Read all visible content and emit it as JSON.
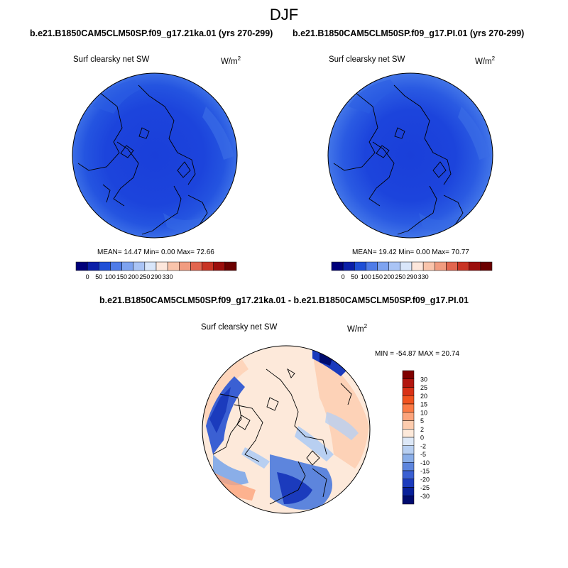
{
  "season": "DJF",
  "panels": [
    {
      "case": "b.e21.B1850CAM5CLM50SP.f09_g17.21ka.01 (yrs 270-299)",
      "variable": "Surf clearsky net SW",
      "units_base": "W/m",
      "units_exp": "2",
      "stats_line": "MEAN=  14.47  Min=   0.00  Max=  72.66",
      "stats": {
        "mean": 14.47,
        "min": 0.0,
        "max": 72.66
      }
    },
    {
      "case": "b.e21.B1850CAM5CLM50SP.f09_g17.PI.01 (yrs 270-299)",
      "variable": "Surf clearsky net SW",
      "units_base": "W/m",
      "units_exp": "2",
      "stats_line": "MEAN=  19.42  Min=   0.00  Max=  70.77",
      "stats": {
        "mean": 19.42,
        "min": 0.0,
        "max": 70.77
      }
    }
  ],
  "difference": {
    "title": "b.e21.B1850CAM5CLM50SP.f09_g17.21ka.01 - b.e21.B1850CAM5CLM50SP.f09_g17.PI.01",
    "variable": "Surf clearsky net SW",
    "units_base": "W/m",
    "units_exp": "2",
    "minmax_line": "MIN = -54.87 MAX =  20.74",
    "stats": {
      "min": -54.87,
      "max": 20.74
    }
  },
  "colorbar_horizontal": {
    "labels": [
      "0",
      "50",
      "100",
      "150",
      "200",
      "250",
      "290",
      "330"
    ],
    "colors": [
      "#00007a",
      "#0a1fa8",
      "#1f4fd6",
      "#4f7ce8",
      "#7ea3f0",
      "#aac4f5",
      "#d9e6fa",
      "#fde7dc",
      "#f9c4ab",
      "#f19c80",
      "#e2664f",
      "#c83424",
      "#9b0e0c",
      "#6b0000"
    ]
  },
  "colorbar_vertical": {
    "labels": [
      "30",
      "25",
      "20",
      "15",
      "10",
      "5",
      "2",
      "0",
      "-2",
      "-5",
      "-10",
      "-15",
      "-20",
      "-25",
      "-30"
    ],
    "colors": [
      "#800000",
      "#b2160f",
      "#d93116",
      "#f1531f",
      "#fb7a45",
      "#fca47c",
      "#fdccae",
      "#fde9da",
      "#dde8f7",
      "#b8cff1",
      "#8aaee8",
      "#5d85dd",
      "#3b60d3",
      "#1b3bbd",
      "#08209a",
      "#000b6e"
    ]
  }
}
